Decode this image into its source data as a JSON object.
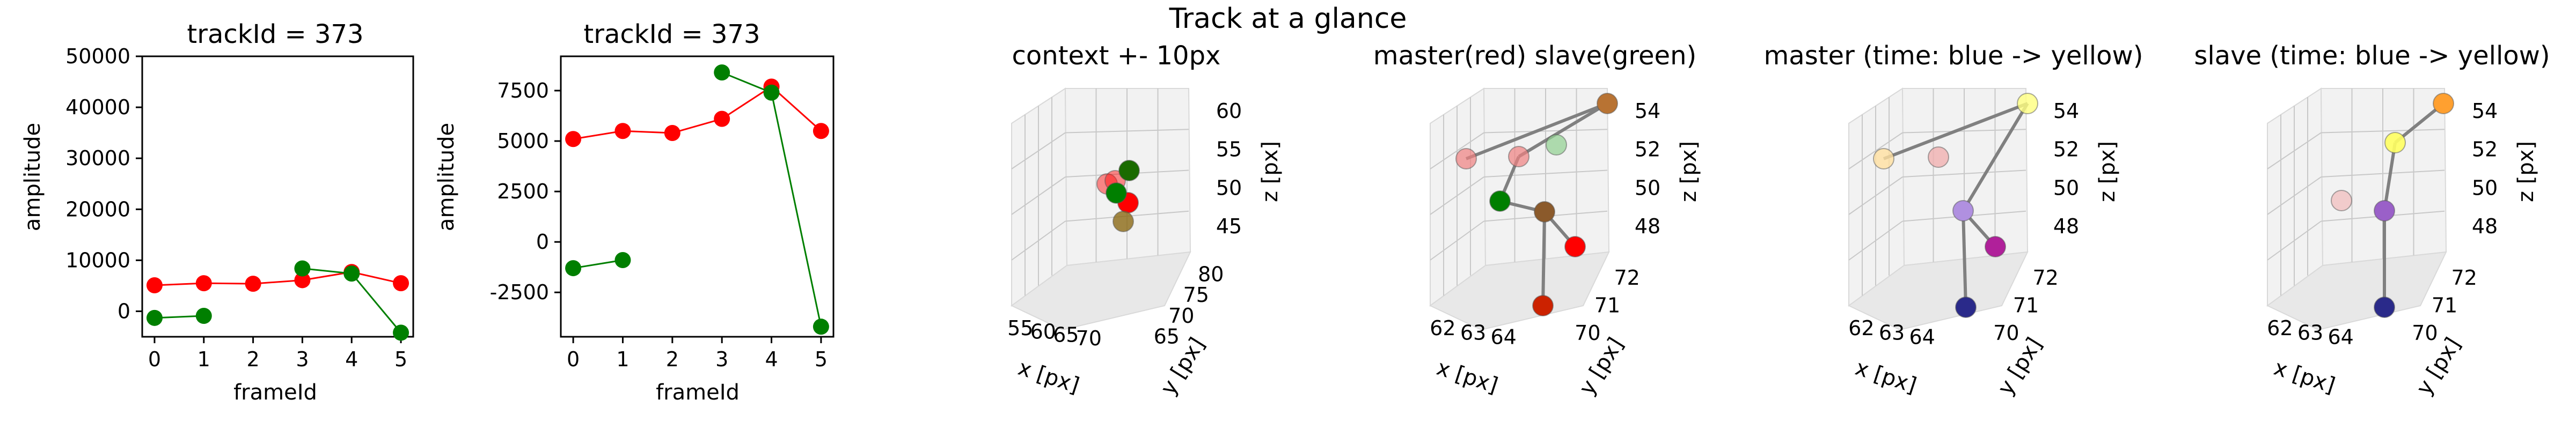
{
  "figure": {
    "suptitle": "Track at a glance"
  },
  "chart_data": [
    {
      "type": "line",
      "title": "trackId = 373",
      "xlabel": "frameId",
      "ylabel": "amplitude",
      "xlim": [
        -0.25,
        5.25
      ],
      "ylim": [
        -5000,
        50000
      ],
      "xticks": [
        0,
        1,
        2,
        3,
        4,
        5
      ],
      "yticks": [
        0,
        10000,
        20000,
        30000,
        40000,
        50000
      ],
      "series": [
        {
          "color": "#ff0000",
          "x": [
            0,
            1,
            2,
            3,
            4,
            5
          ],
          "y": [
            5100,
            5500,
            5400,
            6100,
            7700,
            5500
          ]
        },
        {
          "color": "#007f00",
          "x": [
            0,
            1,
            3,
            4,
            5
          ],
          "y": [
            -1300,
            -900,
            8400,
            7400,
            -4200
          ],
          "segments": [
            [
              0,
              1
            ],
            [
              2,
              4
            ]
          ]
        }
      ]
    },
    {
      "type": "line",
      "title": "trackId = 373",
      "xlabel": "frameId",
      "ylabel": "amplitude",
      "xlim": [
        -0.25,
        5.25
      ],
      "ylim": [
        -4700,
        9200
      ],
      "xticks": [
        0,
        1,
        2,
        3,
        4,
        5
      ],
      "yticks": [
        -2500,
        0,
        2500,
        5000,
        7500
      ],
      "series": [
        {
          "color": "#ff0000",
          "x": [
            0,
            1,
            2,
            3,
            4,
            5
          ],
          "y": [
            5100,
            5500,
            5400,
            6100,
            7700,
            5500
          ]
        },
        {
          "color": "#007f00",
          "x": [
            0,
            1,
            3,
            4,
            5
          ],
          "y": [
            -1300,
            -900,
            8400,
            7400,
            -4200
          ],
          "segments": [
            [
              0,
              1
            ],
            [
              2,
              4
            ]
          ]
        }
      ]
    },
    {
      "type": "scatter",
      "title": "context +- 10px",
      "xlabel": "x [px]",
      "ylabel": "y [px]",
      "zlabel": "z [px]",
      "xticks": [
        "55",
        "60",
        "65",
        "70"
      ],
      "yticks": [
        "65",
        "70",
        "75",
        "80"
      ],
      "zticks": [
        "45",
        "50",
        "55",
        "60"
      ],
      "xlim": [
        52,
        73
      ],
      "ylim": [
        62,
        83
      ],
      "zlim": [
        42,
        62
      ],
      "points": [
        {
          "x": 62.0,
          "y": 71.0,
          "z": 50.5,
          "color": "#ff0000",
          "alpha": 0.45
        },
        {
          "x": 63.0,
          "y": 72.0,
          "z": 50.0,
          "color": "#ff0000",
          "alpha": 0.45
        },
        {
          "x": 64.5,
          "y": 71.5,
          "z": 48.0,
          "color": "#ff0000",
          "alpha": 1.0
        },
        {
          "x": 64.0,
          "y": 70.0,
          "z": 47.0,
          "color": "#8b6914",
          "alpha": 0.8
        },
        {
          "x": 63.0,
          "y": 72.0,
          "z": 49.0,
          "color": "#007f00",
          "alpha": 1.0
        },
        {
          "x": 63.8,
          "y": 72.5,
          "z": 51.0,
          "color": "#1a6b00",
          "alpha": 1.0
        }
      ]
    },
    {
      "type": "scatter",
      "title": "master(red) slave(green)",
      "xlabel": "x [px]",
      "ylabel": "y [px]",
      "zlabel": "z [px]",
      "xticks": [
        "62",
        "63",
        "64"
      ],
      "yticks": [
        "70",
        "71",
        "72"
      ],
      "zticks": [
        "48",
        "50",
        "52",
        "54"
      ],
      "points": [
        {
          "color": "#f08080",
          "alpha": 0.7
        },
        {
          "color": "#f08080",
          "alpha": 0.7
        },
        {
          "color": "#90d090",
          "alpha": 0.7
        },
        {
          "color": "#b87333",
          "alpha": 1.0
        },
        {
          "color": "#007f00",
          "alpha": 1.0
        },
        {
          "color": "#8b5a2b",
          "alpha": 1.0
        },
        {
          "color": "#ff0000",
          "alpha": 1.0
        },
        {
          "color": "#cc2200",
          "alpha": 1.0
        }
      ]
    },
    {
      "type": "scatter",
      "title": "master (time: blue -> yellow)",
      "xlabel": "x [px]",
      "ylabel": "y [px]",
      "zlabel": "z [px]",
      "xticks": [
        "62",
        "63",
        "64"
      ],
      "yticks": [
        "70",
        "71",
        "72"
      ],
      "zticks": [
        "48",
        "50",
        "52",
        "54"
      ],
      "points": [
        {
          "color": "#ffe0a0",
          "alpha": 0.8
        },
        {
          "color": "#f0b0b0",
          "alpha": 0.8
        },
        {
          "color": "#ffff80",
          "alpha": 0.8
        },
        {
          "color": "#b090e0",
          "alpha": 1.0
        },
        {
          "color": "#b0209a",
          "alpha": 1.0
        },
        {
          "color": "#2a2a8a",
          "alpha": 1.0
        }
      ]
    },
    {
      "type": "scatter",
      "title": "slave (time: blue -> yellow)",
      "xlabel": "x [px]",
      "ylabel": "y [px]",
      "zlabel": "z [px]",
      "xticks": [
        "62",
        "63",
        "64"
      ],
      "yticks": [
        "70",
        "71",
        "72"
      ],
      "zticks": [
        "48",
        "50",
        "52",
        "54"
      ],
      "points": [
        {
          "color": "#ffff60",
          "alpha": 0.9
        },
        {
          "color": "#f0b0b0",
          "alpha": 0.6
        },
        {
          "color": "#ffa030",
          "alpha": 1.0
        },
        {
          "color": "#9a60c8",
          "alpha": 1.0
        },
        {
          "color": "#2a2a8a",
          "alpha": 1.0
        }
      ]
    }
  ]
}
